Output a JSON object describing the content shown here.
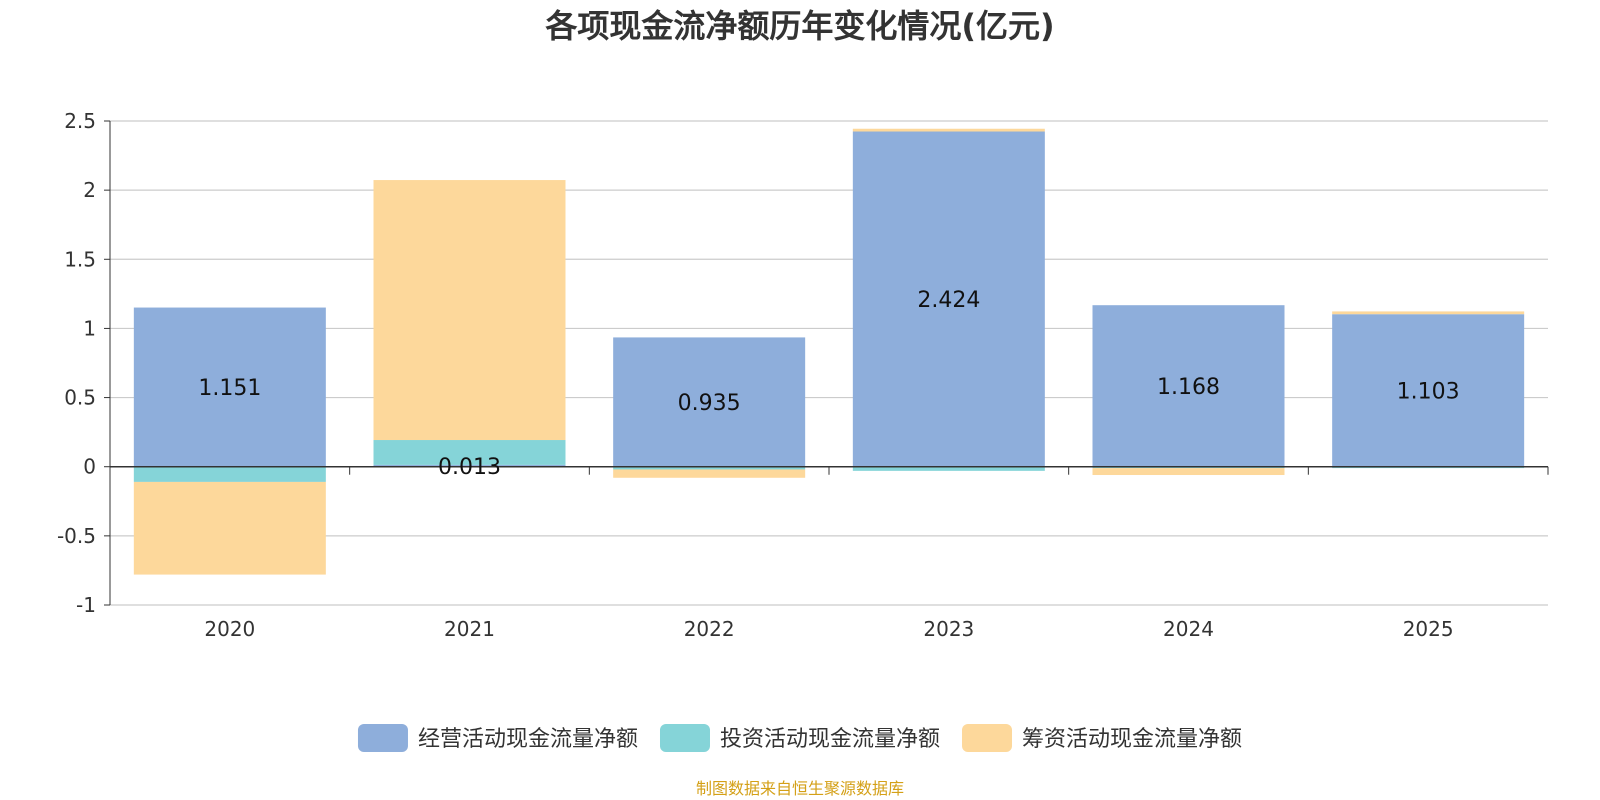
{
  "chart_data": {
    "type": "bar",
    "stacked": true,
    "title": "各项现金流净额历年变化情况(亿元)",
    "categories": [
      "2020",
      "2021",
      "2022",
      "2023",
      "2024",
      "2025"
    ],
    "series": [
      {
        "name": "经营活动现金流量净额",
        "color": "#8eaedb",
        "values": [
          1.151,
          0.013,
          0.935,
          2.424,
          1.168,
          1.103
        ]
      },
      {
        "name": "投资活动现金流量净额",
        "color": "#85d4d8",
        "values": [
          -0.11,
          0.18,
          -0.02,
          -0.03,
          -0.01,
          -0.01
        ]
      },
      {
        "name": "筹资活动现金流量净额",
        "color": "#fdd89b",
        "values": [
          -0.67,
          1.88,
          -0.06,
          0.02,
          -0.05,
          0.02
        ]
      }
    ],
    "data_labels": [
      "1.151",
      "0.013",
      "0.935",
      "2.424",
      "1.168",
      "1.103"
    ],
    "ylim": [
      -1,
      2.5
    ],
    "yticks": [
      "2.5",
      "2",
      "1.5",
      "1",
      "0.5",
      "0",
      "-0.5",
      "-1"
    ],
    "ytick_values": [
      2.5,
      2,
      1.5,
      1,
      0.5,
      0,
      -0.5,
      -1
    ],
    "grid": true,
    "legend_position": "bottom-center",
    "xlabel": "",
    "ylabel": ""
  },
  "source_text": "制图数据来自恒生聚源数据库",
  "colors": {
    "grid": "#cccccc",
    "axis": "#333333",
    "source": "#d4a017"
  }
}
